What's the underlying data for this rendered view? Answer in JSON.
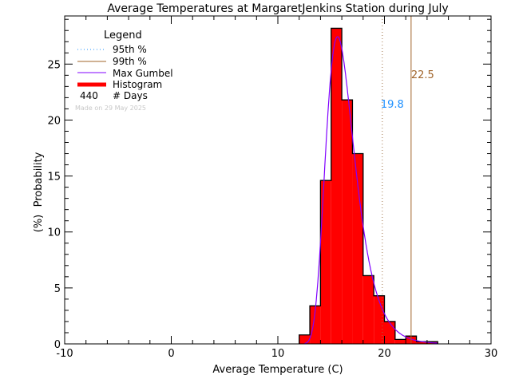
{
  "chart_data": {
    "type": "bar",
    "title": "Average Temperatures at MargaretJenkins Station during July",
    "xlabel": "Average Temperature (C)",
    "ylabel_top": "Probability",
    "ylabel_bottom": "(%)",
    "xlim": [
      -10,
      30
    ],
    "ylim": [
      0,
      29.3
    ],
    "xticks": [
      "-10",
      "0",
      "10",
      "20",
      "30"
    ],
    "xtick_values": [
      -10,
      0,
      10,
      20,
      30
    ],
    "yticks": [
      "0",
      "5",
      "10",
      "15",
      "20",
      "25"
    ],
    "ytick_values": [
      0,
      5,
      10,
      15,
      20,
      25
    ],
    "grid": false,
    "histogram": {
      "bin_edges": [
        12,
        13,
        14,
        15,
        16,
        17,
        18,
        19,
        20,
        21,
        22,
        23,
        24,
        25
      ],
      "values": [
        0.8,
        3.4,
        14.6,
        28.2,
        21.8,
        17.0,
        6.1,
        4.3,
        2.0,
        0.4,
        0.7,
        0.2,
        0.2
      ],
      "color": "#ff0000"
    },
    "gumbel": {
      "mu": 15.6,
      "beta": 1.34,
      "color": "#8000ff"
    },
    "percentile_95": {
      "value": 19.8,
      "label": "19.8",
      "color": "#1e90ff",
      "line_color": "#a0744a"
    },
    "percentile_99": {
      "value": 22.5,
      "label": "22.5",
      "color": "#a0642a"
    },
    "legend": {
      "title": "Legend",
      "placement": "top-left",
      "items": [
        "95th %",
        "99th %",
        "Max Gumbel",
        "Histogram"
      ],
      "days_count": "440",
      "days_label": "# Days",
      "made_on": "Made on 29 May 2025"
    }
  }
}
